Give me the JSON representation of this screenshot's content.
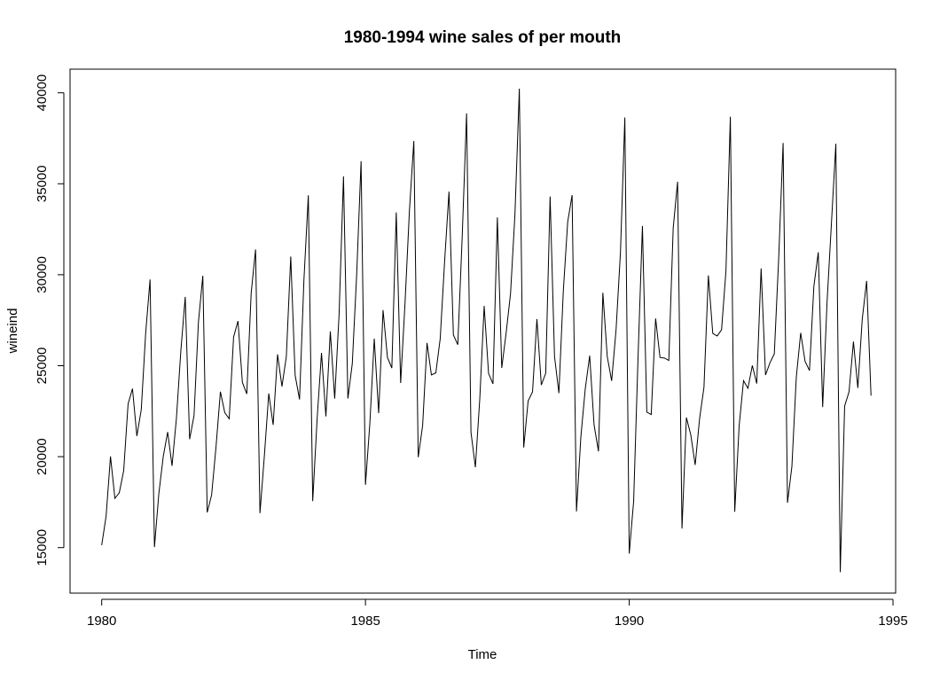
{
  "chart_data": {
    "type": "line",
    "title": "1980-1994  wine sales of per mouth",
    "xlabel": "Time",
    "ylabel": "wineind",
    "xlim": [
      1979.4,
      1995.05
    ],
    "ylim": [
      12500,
      41300
    ],
    "xticks": [
      1980,
      1985,
      1990,
      1995
    ],
    "yticks": [
      15000,
      20000,
      25000,
      30000,
      35000,
      40000
    ],
    "grid": false,
    "frequency": 12,
    "start": 1980,
    "series": [
      {
        "values": [
          15136,
          16733,
          20016,
          17708,
          18019,
          19227,
          22893,
          23739,
          21133,
          22591,
          26786,
          29740,
          15028,
          17977,
          20008,
          21354,
          19498,
          22125,
          25817,
          28779,
          20960,
          22254,
          27392,
          29945,
          16933,
          17892,
          20533,
          23569,
          22417,
          22084,
          26580,
          27454,
          24081,
          23451,
          28991,
          31386,
          16896,
          20045,
          23471,
          21747,
          25621,
          23859,
          25500,
          30998,
          24475,
          23145,
          29701,
          34365,
          17556,
          22077,
          25702,
          22214,
          26886,
          23191,
          27831,
          35406,
          23195,
          25110,
          30009,
          36242,
          18450,
          21845,
          26488,
          22394,
          28057,
          25451,
          24872,
          33424,
          24052,
          28449,
          33533,
          37351,
          19969,
          21701,
          26249,
          24493,
          24603,
          26485,
          30723,
          34569,
          26689,
          26157,
          32064,
          38870,
          21337,
          19419,
          23166,
          28286,
          24570,
          24001,
          33151,
          24878,
          26804,
          28967,
          33311,
          40226,
          20504,
          23060,
          23562,
          27562,
          23940,
          24584,
          34303,
          25517,
          23494,
          29095,
          32903,
          34379,
          16991,
          21109,
          23740,
          25552,
          21752,
          20294,
          29009,
          25500,
          24166,
          26960,
          31222,
          38641,
          14672,
          17543,
          25453,
          32683,
          22449,
          22316,
          27595,
          25451,
          25421,
          25288,
          32568,
          35110,
          16052,
          22146,
          21198,
          19543,
          22084,
          23816,
          29961,
          26773,
          26635,
          26972,
          30207,
          38687,
          16974,
          21697,
          24179,
          23757,
          25013,
          24019,
          30345,
          24488,
          25156,
          25650,
          30923,
          37240,
          17466,
          19463,
          24352,
          26805,
          25236,
          24735,
          29356,
          31234,
          22724,
          28496,
          32857,
          37198,
          13652,
          22784,
          23565,
          26323,
          23779,
          27549,
          29660,
          23356
        ]
      }
    ]
  }
}
